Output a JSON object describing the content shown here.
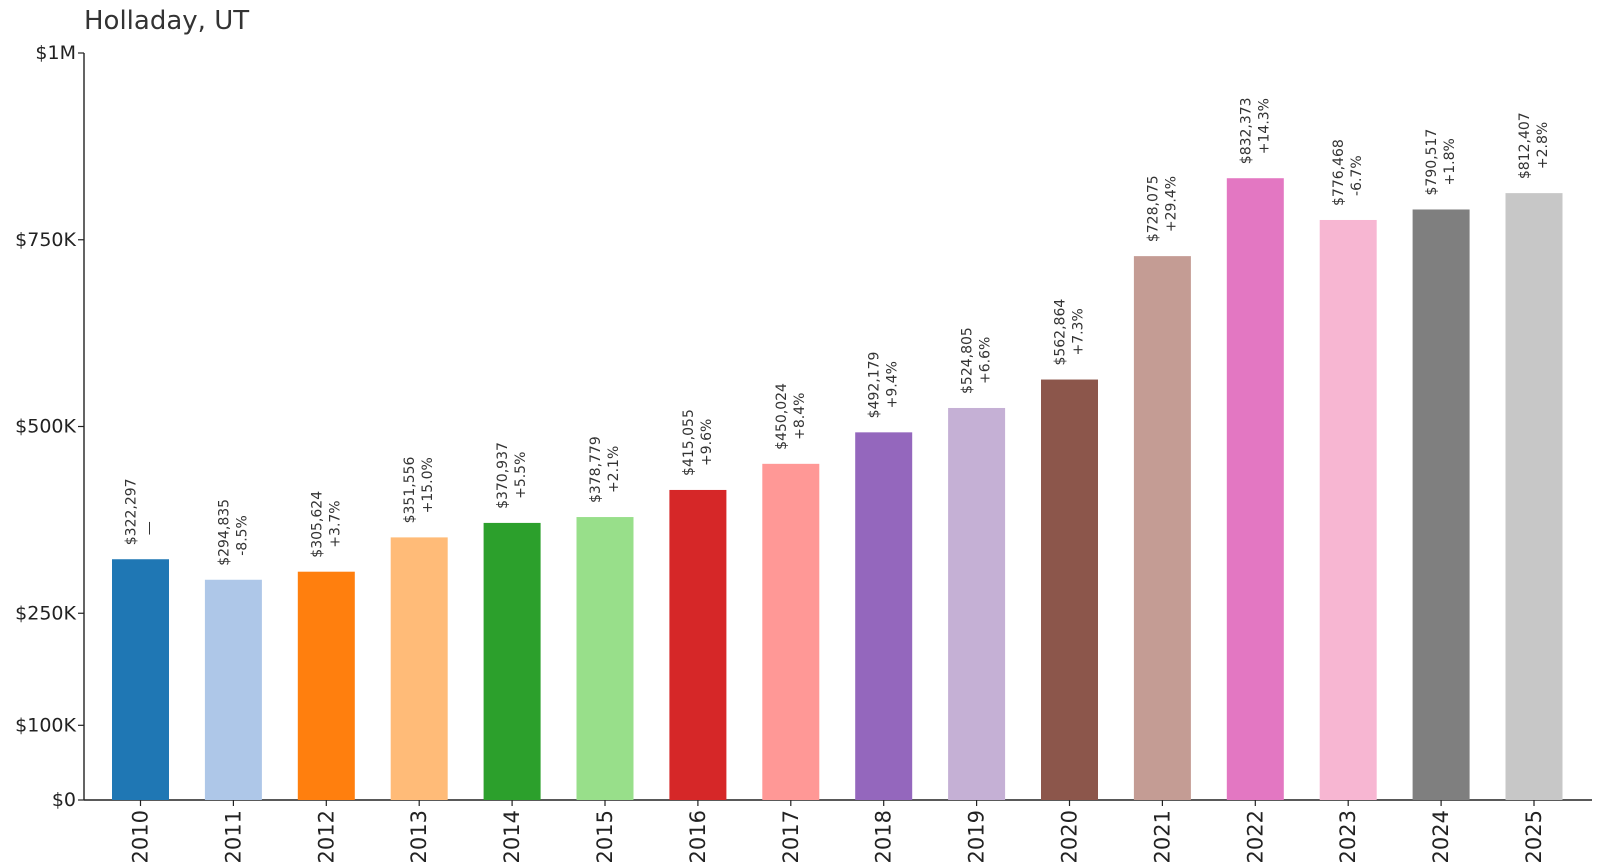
{
  "chart_data": {
    "type": "bar",
    "title": "Holladay, UT",
    "xlabel": "",
    "ylabel": "",
    "ylim": [
      0,
      1000000
    ],
    "y_tick_values": [
      0,
      100000,
      250000,
      500000,
      750000,
      1000000
    ],
    "y_tick_labels": [
      "$0",
      "$100K",
      "$250K",
      "$500K",
      "$750K",
      "$1M"
    ],
    "categories": [
      "2010",
      "2011",
      "2012",
      "2013",
      "2014",
      "2015",
      "2016",
      "2017",
      "2018",
      "2019",
      "2020",
      "2021",
      "2022",
      "2023",
      "2024",
      "2025"
    ],
    "values": [
      322297,
      294835,
      305624,
      351556,
      370937,
      378779,
      415055,
      450024,
      492179,
      524805,
      562864,
      728075,
      832373,
      776468,
      790517,
      812407
    ],
    "value_labels": [
      "$322,297",
      "$294,835",
      "$305,624",
      "$351,556",
      "$370,937",
      "$378,779",
      "$415,055",
      "$450,024",
      "$492,179",
      "$524,805",
      "$562,864",
      "$728,075",
      "$832,373",
      "$776,468",
      "$790,517",
      "$812,407"
    ],
    "change_labels": [
      "—",
      "-8.5%",
      "+3.7%",
      "+15.0%",
      "+5.5%",
      "+2.1%",
      "+9.6%",
      "+8.4%",
      "+9.4%",
      "+6.6%",
      "+7.3%",
      "+29.4%",
      "+14.3%",
      "-6.7%",
      "+1.8%",
      "+2.8%"
    ],
    "colors": [
      "#1f77b4",
      "#aec7e8",
      "#ff7f0e",
      "#ffbb78",
      "#2ca02c",
      "#98df8a",
      "#d62728",
      "#ff9896",
      "#9467bd",
      "#c5b0d5",
      "#8c564b",
      "#c49c94",
      "#e377c2",
      "#f7b6d2",
      "#7f7f7f",
      "#c7c7c7"
    ],
    "grid": false,
    "legend": "none"
  }
}
